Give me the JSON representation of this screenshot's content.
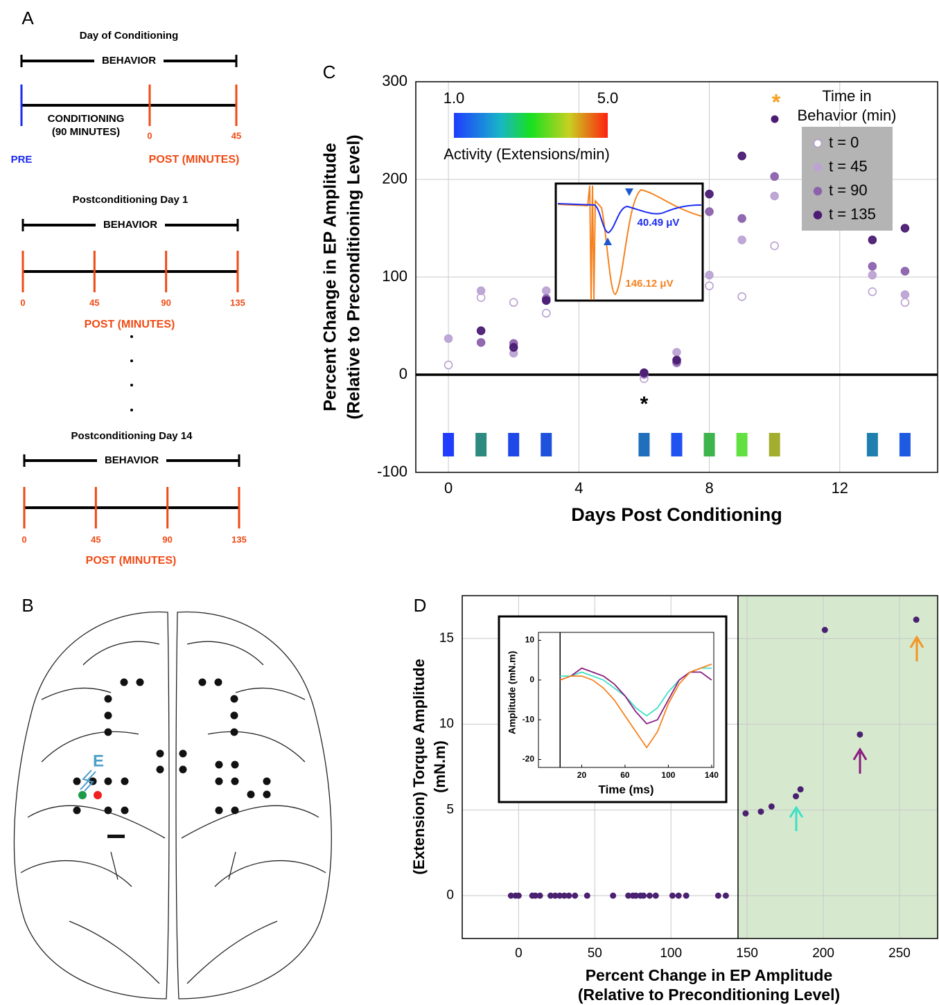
{
  "panel_a": {
    "label": "A",
    "timelines": [
      {
        "title": "Day of Conditioning",
        "bar_label": "BEHAVIOR",
        "phase_label": [
          "CONDITIONING",
          "(90 MINUTES)"
        ],
        "pre_label": "PRE",
        "ticks": [
          0,
          45
        ],
        "post_label": "POST (MINUTES)"
      },
      {
        "title": "Postconditioning Day 1",
        "bar_label": "BEHAVIOR",
        "ticks": [
          0,
          45,
          90,
          135
        ],
        "post_label": "POST (MINUTES)"
      },
      {
        "title": "Postconditioning Day 14",
        "bar_label": "BEHAVIOR",
        "ticks": [
          0,
          45,
          90,
          135
        ],
        "post_label": "POST (MINUTES)"
      }
    ]
  },
  "panel_b": {
    "label": "B",
    "electrode_label": "E"
  },
  "chart_data": [
    {
      "type": "scatter",
      "label": "C",
      "x": [
        0,
        1,
        2,
        3,
        6,
        7,
        8,
        9,
        10,
        13,
        14
      ],
      "series": [
        {
          "name": "t = 0",
          "color": "#b59bcb",
          "filled": false,
          "values": [
            10,
            79,
            74,
            63,
            -4,
            12,
            91,
            80,
            132,
            85,
            74
          ]
        },
        {
          "name": "t = 45",
          "color": "#bca3d3",
          "filled": true,
          "values": [
            37,
            86,
            22,
            86,
            0,
            23,
            102,
            138,
            183,
            102,
            82
          ]
        },
        {
          "name": "t = 90",
          "color": "#8c62ad",
          "filled": true,
          "values": [
            null,
            33,
            32,
            78,
            1,
            13,
            167,
            160,
            203,
            111,
            106
          ]
        },
        {
          "name": "t = 135",
          "color": "#4b1c73",
          "filled": true,
          "values": [
            null,
            45,
            28,
            76,
            2,
            15,
            185,
            224,
            null,
            138,
            150
          ]
        }
      ],
      "xlabel": "Days Post Conditioning",
      "ylabel": [
        "Percent Change in EP Amplitude",
        "(Relative to Preconditioning Level)"
      ],
      "xlim": [
        -1,
        15
      ],
      "ylim": [
        -100,
        300
      ],
      "xticks": [
        0,
        4,
        8,
        12
      ],
      "yticks": [
        -100,
        0,
        100,
        200,
        300
      ],
      "grid": true,
      "legend_title": [
        "Time in",
        "Behavior (min)"
      ],
      "legend_marker_label": "*",
      "legend_marker_color": "#f5a020",
      "activity_colors": [
        "#1f3cff",
        "#2e8a80",
        "#1f48e8",
        "#1f52dc",
        "#1f6fbc",
        "#1f52f0",
        "#3db44c",
        "#62e042",
        "#a3ad2e",
        "#1f7fae",
        "#1f5ae2"
      ],
      "colorbar": {
        "ticks": [
          {
            "value": 1,
            "label": "1.0"
          },
          {
            "value": 5,
            "label": "5.0"
          }
        ],
        "label": "Activity (Extensions/min)"
      },
      "significance": {
        "x": 6,
        "text": "*"
      },
      "inset_labels": [
        "40.49 μV",
        "146.12 μV"
      ]
    },
    {
      "type": "scatter",
      "label": "D",
      "x": [
        -5,
        -2,
        0,
        9,
        11,
        14,
        21,
        24,
        27,
        30,
        33,
        37,
        45,
        62,
        72,
        75,
        77,
        80,
        82,
        86,
        90,
        101,
        105,
        110,
        131,
        136,
        149,
        159,
        166,
        182,
        185,
        201,
        224,
        261
      ],
      "values": [
        0,
        0,
        0,
        0,
        0,
        0,
        0,
        0,
        0,
        0,
        0,
        0,
        0,
        0,
        0,
        0,
        0,
        0,
        0,
        0,
        0,
        0,
        0,
        0,
        0,
        0,
        4.8,
        4.9,
        5.2,
        5.8,
        6.2,
        15.5,
        9.4,
        16.1
      ],
      "color": "#4a2070",
      "xlabel": [
        "Percent Change in EP Amplitude",
        "(Relative to Preconditioning Level)"
      ],
      "ylabel": [
        "(Extension) Torque Amplitude",
        "(mN.m)"
      ],
      "xlim": [
        -37,
        275
      ],
      "ylim": [
        -2.5,
        17.5
      ],
      "xticks": [
        0,
        50,
        100,
        150,
        200,
        250
      ],
      "yticks": [
        0,
        5,
        10,
        15
      ],
      "grid": true,
      "shade_from": 144,
      "shade_color": "#d6e9cf"
    },
    {
      "type": "line",
      "x": [
        0,
        10,
        20,
        30,
        40,
        50,
        60,
        70,
        80,
        90,
        100,
        110,
        120,
        130,
        140
      ],
      "series": [
        {
          "color": "#3de0c4",
          "values": [
            1,
            1,
            2,
            1,
            0,
            -2,
            -4,
            -7,
            -9,
            -7,
            -3,
            0,
            2,
            3,
            3
          ]
        },
        {
          "color": "#8a1a7e",
          "values": [
            0,
            1,
            3,
            2,
            1,
            -1,
            -4,
            -8,
            -11,
            -10,
            -5,
            0,
            2,
            2,
            0
          ]
        },
        {
          "color": "#f5821f",
          "values": [
            0,
            1,
            1,
            0,
            -2,
            -5,
            -9,
            -13,
            -17,
            -13,
            -6,
            -1,
            2,
            3,
            4
          ]
        }
      ],
      "xlabel": "Time (ms)",
      "ylabel": "Amplitude (mN.m)",
      "xlim": [
        -20,
        142
      ],
      "ylim": [
        -22,
        12
      ],
      "xticks": [
        20,
        60,
        100,
        140
      ],
      "yticks": [
        10,
        0,
        -10,
        -20
      ],
      "grid": false
    }
  ]
}
